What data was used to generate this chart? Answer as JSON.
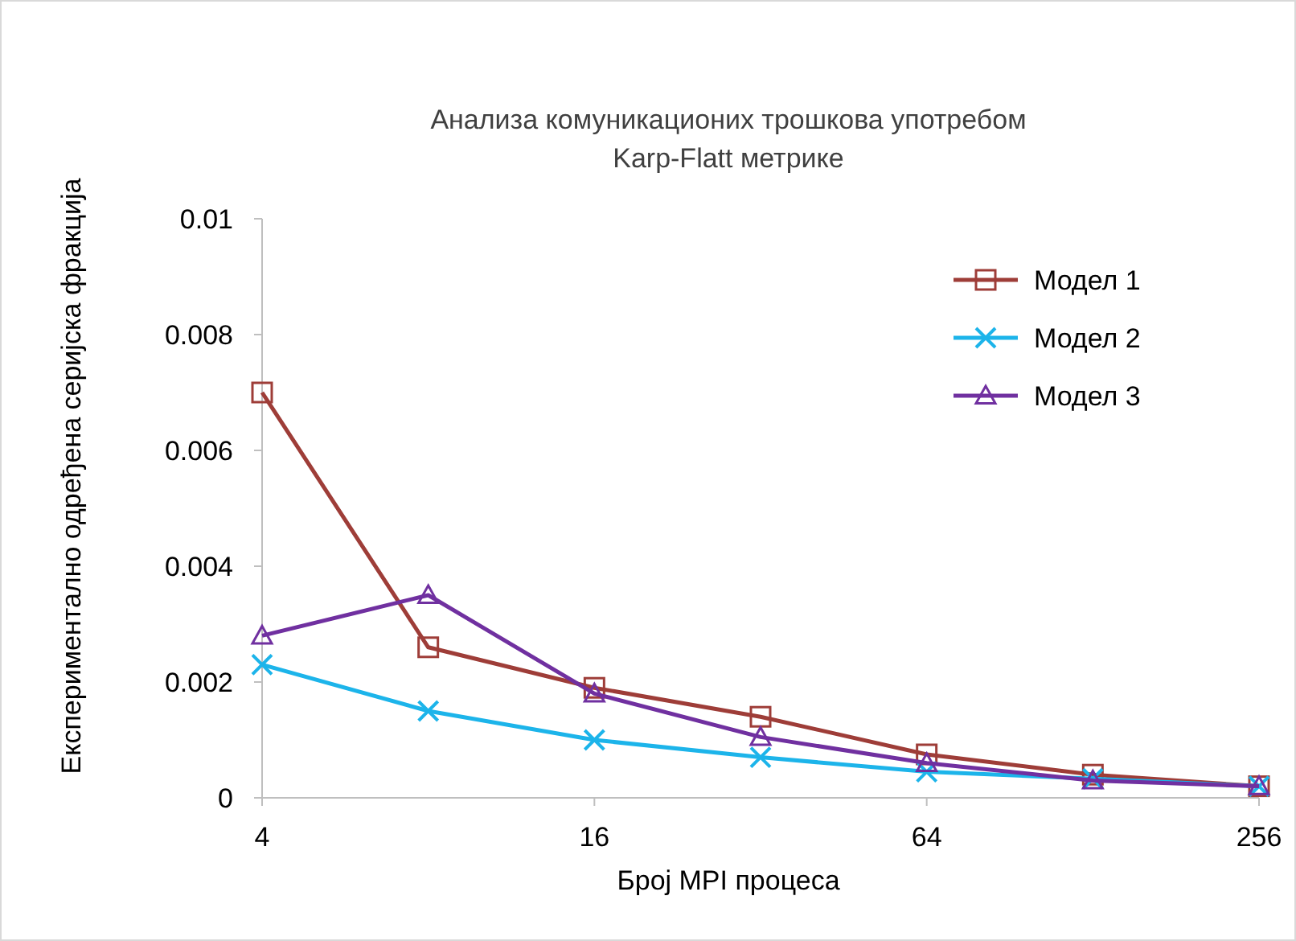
{
  "chart_data": {
    "type": "line",
    "title": "Анализа комуникационих трошкова употребом Karp-Flatt метрике",
    "xlabel": "Број  MPI процеса",
    "ylabel": "Експериментално одређена серијска фракција",
    "log": "x",
    "x": [
      4,
      8,
      16,
      32,
      64,
      128,
      256
    ],
    "xlim": [
      4,
      256
    ],
    "xticks": [
      4,
      16,
      64,
      256
    ],
    "ylim": [
      0,
      0.01
    ],
    "yticks": [
      0,
      0.002,
      0.004,
      0.006,
      0.008,
      0.01
    ],
    "grid": false,
    "legend": "top right",
    "series": [
      {
        "name": "Модел 1",
        "color": "#9e3d38",
        "marker": "square",
        "values": [
          0.007,
          0.0026,
          0.0019,
          0.0014,
          0.00075,
          0.0004,
          0.0002
        ]
      },
      {
        "name": "Модел 2",
        "color": "#1cb4ea",
        "marker": "cross",
        "values": [
          0.0023,
          0.0015,
          0.001,
          0.0007,
          0.00045,
          0.00033,
          0.0002
        ]
      },
      {
        "name": "Модел 3",
        "color": "#7030a0",
        "marker": "triangle",
        "values": [
          0.0028,
          0.0035,
          0.0018,
          0.00105,
          0.0006,
          0.0003,
          0.0002
        ]
      }
    ]
  }
}
